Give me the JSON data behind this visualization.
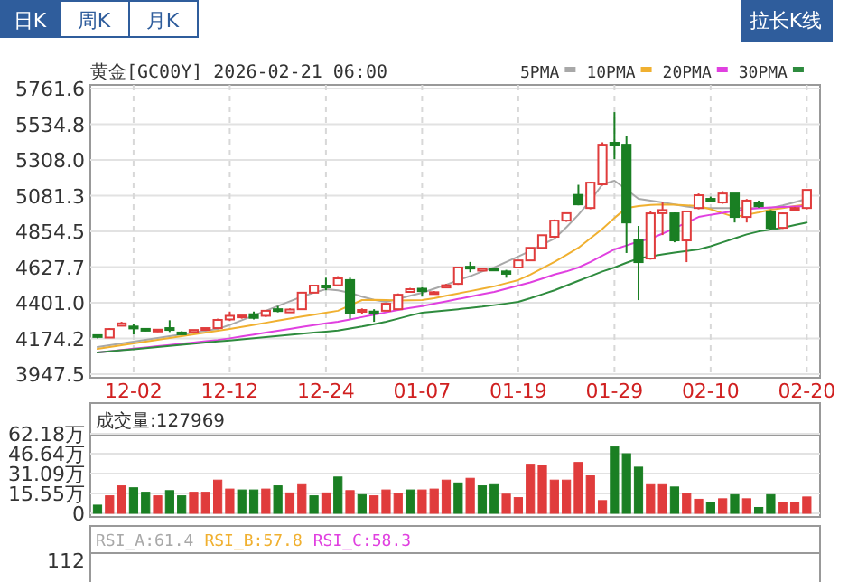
{
  "chart_data": [
    {
      "type": "candlestick",
      "title": "黄金[GC00Y] 2026-02-21 06:00",
      "annotations": [
        "日K",
        "周K",
        "月K",
        "拉长K线"
      ],
      "categories": [
        null,
        null,
        null,
        "12-02",
        null,
        null,
        null,
        null,
        null,
        null,
        null,
        "12-12",
        null,
        null,
        null,
        null,
        null,
        null,
        null,
        "12-24",
        null,
        null,
        null,
        null,
        null,
        null,
        null,
        "01-07",
        null,
        null,
        null,
        null,
        null,
        null,
        null,
        "01-19",
        null,
        null,
        null,
        null,
        null,
        null,
        null,
        "01-29",
        null,
        null,
        null,
        null,
        null,
        null,
        null,
        "02-10",
        null,
        null,
        null,
        null,
        null,
        null,
        null,
        "02-20"
      ],
      "ohlc": [
        [
          4195,
          4200,
          4175,
          4185
        ],
        [
          4180,
          4240,
          4175,
          4234
        ],
        [
          4255,
          4280,
          4250,
          4270
        ],
        [
          4250,
          4265,
          4200,
          4238
        ],
        [
          4235,
          4240,
          4220,
          4228
        ],
        [
          4222,
          4235,
          4215,
          4230
        ],
        [
          4240,
          4290,
          4215,
          4232
        ],
        [
          4212,
          4220,
          4200,
          4205
        ],
        [
          4215,
          4232,
          4210,
          4228
        ],
        [
          4232,
          4245,
          4225,
          4240
        ],
        [
          4240,
          4300,
          4235,
          4292
        ],
        [
          4295,
          4345,
          4285,
          4318
        ],
        [
          4310,
          4325,
          4300,
          4320
        ],
        [
          4328,
          4345,
          4295,
          4305
        ],
        [
          4318,
          4355,
          4310,
          4350
        ],
        [
          4360,
          4380,
          4340,
          4350
        ],
        [
          4340,
          4365,
          4335,
          4358
        ],
        [
          4360,
          4470,
          4355,
          4465
        ],
        [
          4465,
          4515,
          4460,
          4510
        ],
        [
          4510,
          4560,
          4480,
          4500
        ],
        [
          4512,
          4570,
          4505,
          4556
        ],
        [
          4545,
          4560,
          4300,
          4337
        ],
        [
          4345,
          4365,
          4330,
          4355
        ],
        [
          4345,
          4360,
          4280,
          4338
        ],
        [
          4350,
          4400,
          4345,
          4395
        ],
        [
          4360,
          4460,
          4355,
          4452
        ],
        [
          4470,
          4495,
          4465,
          4487
        ],
        [
          4490,
          4500,
          4440,
          4475
        ],
        [
          4462,
          4475,
          4455,
          4468
        ],
        [
          4498,
          4520,
          4495,
          4512
        ],
        [
          4521,
          4630,
          4515,
          4625
        ],
        [
          4630,
          4660,
          4595,
          4622
        ],
        [
          4605,
          4625,
          4600,
          4618
        ],
        [
          4618,
          4625,
          4605,
          4612
        ],
        [
          4600,
          4610,
          4560,
          4585
        ],
        [
          4625,
          4675,
          4620,
          4670
        ],
        [
          4670,
          4755,
          4665,
          4750
        ],
        [
          4750,
          4835,
          4745,
          4830
        ],
        [
          4820,
          4930,
          4815,
          4923
        ],
        [
          4923,
          4975,
          4915,
          4970
        ],
        [
          5086,
          5150,
          5020,
          5026
        ],
        [
          5003,
          5170,
          4995,
          5164
        ],
        [
          5153,
          5420,
          5145,
          5405
        ],
        [
          5417,
          5612,
          5313,
          5400
        ],
        [
          5405,
          5463,
          4717,
          4911
        ],
        [
          4797,
          4889,
          4418,
          4659
        ],
        [
          4682,
          4981,
          4675,
          4969
        ],
        [
          4970,
          5038,
          4831,
          4990
        ],
        [
          4969,
          4975,
          4785,
          4797
        ],
        [
          4797,
          4985,
          4659,
          4981
        ],
        [
          5003,
          5095,
          4995,
          5084
        ],
        [
          5061,
          5075,
          5040,
          5050
        ],
        [
          5038,
          5110,
          5030,
          5095
        ],
        [
          5095,
          5100,
          4911,
          4946
        ],
        [
          4946,
          5060,
          4911,
          5050
        ],
        [
          5038,
          5050,
          5005,
          5015
        ],
        [
          4981,
          4990,
          4865,
          4877
        ],
        [
          4877,
          4975,
          4870,
          4969
        ],
        [
          4992,
          5010,
          4985,
          5003
        ],
        [
          5003,
          5118,
          4995,
          5118
        ]
      ],
      "colors": [
        "#1a7f23",
        "#e03c3c",
        "#e03c3c",
        "#1a7f23",
        "#1a7f23",
        "#e03c3c",
        "#1a7f23",
        "#1a7f23",
        "#e03c3c",
        "#e03c3c",
        "#e03c3c",
        "#e03c3c",
        "#e03c3c",
        "#1a7f23",
        "#e03c3c",
        "#1a7f23",
        "#e03c3c",
        "#e03c3c",
        "#e03c3c",
        "#1a7f23",
        "#e03c3c",
        "#1a7f23",
        "#e03c3c",
        "#1a7f23",
        "#e03c3c",
        "#e03c3c",
        "#e03c3c",
        "#1a7f23",
        "#e03c3c",
        "#e03c3c",
        "#e03c3c",
        "#1a7f23",
        "#e03c3c",
        "#1a7f23",
        "#1a7f23",
        "#e03c3c",
        "#e03c3c",
        "#e03c3c",
        "#e03c3c",
        "#e03c3c",
        "#1a7f23",
        "#e03c3c",
        "#e03c3c",
        "#1a7f23",
        "#1a7f23",
        "#1a7f23",
        "#e03c3c",
        "#e03c3c",
        "#1a7f23",
        "#e03c3c",
        "#e03c3c",
        "#1a7f23",
        "#e03c3c",
        "#1a7f23",
        "#e03c3c",
        "#1a7f23",
        "#1a7f23",
        "#e03c3c",
        "#e03c3c",
        "#e03c3c"
      ],
      "series": [
        {
          "name": "5PMA",
          "type": "line",
          "color": "#a8a8a8",
          "values": [
            4120,
            4131,
            4143,
            4154,
            4166,
            4177,
            4188,
            4200,
            4211,
            4223,
            4234,
            4260,
            4290,
            4320,
            4350,
            4380,
            4410,
            4440,
            4465,
            4487,
            4480,
            4464,
            4440,
            4420,
            4407,
            4425,
            4445,
            4464,
            4490,
            4515,
            4545,
            4570,
            4600,
            4625,
            4660,
            4695,
            4730,
            4770,
            4808,
            4880,
            4960,
            5050,
            5153,
            5176,
            5120,
            5061,
            5050,
            5038,
            5025,
            5012,
            5003,
            5003,
            5003,
            5003,
            5003,
            5003,
            5003,
            5020,
            5040,
            5061
          ]
        },
        {
          "name": "10PMA",
          "type": "line",
          "color": "#f0b030",
          "values": [
            4108,
            4120,
            4131,
            4143,
            4154,
            4166,
            4177,
            4189,
            4200,
            4212,
            4223,
            4235,
            4248,
            4261,
            4274,
            4287,
            4300,
            4313,
            4325,
            4338,
            4350,
            4385,
            4418,
            4420,
            4418,
            4416,
            4417,
            4418,
            4430,
            4445,
            4460,
            4475,
            4490,
            4505,
            4525,
            4545,
            4580,
            4620,
            4660,
            4705,
            4750,
            4810,
            4870,
            4940,
            5003,
            5015,
            5022,
            5026,
            5024,
            5020,
            5015,
            4995,
            4970,
            4946,
            4960,
            4975,
            4992,
            5003,
            5015,
            5026
          ]
        },
        {
          "name": "20PMA",
          "type": "line",
          "color": "#e040e0",
          "values": [
            4085,
            4093,
            4101,
            4109,
            4117,
            4125,
            4133,
            4141,
            4149,
            4157,
            4165,
            4175,
            4187,
            4199,
            4211,
            4223,
            4235,
            4247,
            4259,
            4270,
            4280,
            4295,
            4310,
            4325,
            4340,
            4355,
            4368,
            4380,
            4395,
            4410,
            4425,
            4440,
            4455,
            4470,
            4490,
            4510,
            4530,
            4555,
            4580,
            4600,
            4625,
            4660,
            4700,
            4740,
            4765,
            4790,
            4808,
            4840,
            4875,
            4910,
            4946,
            4960,
            4972,
            4984,
            4995,
            5003,
            5006,
            5009,
            5012,
            5015
          ]
        },
        {
          "name": "30PMA",
          "type": "line",
          "color": "#2e8b3e",
          "values": [
            4085,
            4092,
            4099,
            4106,
            4113,
            4120,
            4127,
            4134,
            4141,
            4148,
            4155,
            4162,
            4169,
            4176,
            4183,
            4190,
            4197,
            4204,
            4211,
            4218,
            4225,
            4238,
            4250,
            4265,
            4280,
            4300,
            4320,
            4338,
            4345,
            4352,
            4360,
            4368,
            4376,
            4386,
            4396,
            4407,
            4430,
            4455,
            4480,
            4510,
            4540,
            4570,
            4600,
            4625,
            4655,
            4682,
            4695,
            4708,
            4720,
            4730,
            4740,
            4760,
            4785,
            4810,
            4835,
            4854,
            4866,
            4878,
            4895,
            4911
          ]
        }
      ],
      "ylim": [
        3947.5,
        5761.6
      ],
      "yticks": [
        3947.5,
        4174.2,
        {
          "value": 4401,
          "label": "4401.0"
        },
        4627.7,
        4854.5,
        5081.3,
        {
          "value": 5308,
          "label": "5308.0"
        },
        5534.8,
        5761.6
      ],
      "grid": true,
      "legend": "top right"
    },
    {
      "type": "bar",
      "title": "成交量:127969",
      "categories": [
        null,
        null,
        null,
        null,
        null,
        null,
        null,
        null,
        null,
        null,
        null,
        null,
        null,
        null,
        null,
        null,
        null,
        null,
        null,
        null,
        null,
        null,
        null,
        null,
        null,
        null,
        null,
        null,
        null,
        null,
        null,
        null,
        null,
        null,
        null,
        null,
        null,
        null,
        null,
        null,
        null,
        null,
        null,
        null,
        null,
        null,
        null,
        null,
        null,
        null,
        null,
        null,
        null,
        null,
        null,
        null,
        null,
        null,
        null,
        null
      ],
      "values": [
        6.4,
        13.7,
        21.5,
        20,
        16.5,
        13.7,
        17.8,
        13.7,
        16.5,
        16.5,
        26,
        19,
        18.3,
        18.3,
        19,
        21.5,
        16,
        22.4,
        13.7,
        16,
        28.4,
        17.8,
        14.6,
        13.7,
        18.3,
        15.5,
        18.3,
        18.3,
        19,
        26,
        23.8,
        27.4,
        21.5,
        22.4,
        15,
        12.3,
        38.4,
        37.5,
        26,
        26,
        39.8,
        29.3,
        10,
        52.1,
        46.6,
        36.1,
        22.4,
        22.4,
        20.6,
        15.5,
        11,
        8.7,
        11.4,
        14.6,
        11.4,
        4.6,
        14.6,
        8.7,
        8.7,
        12.8
      ],
      "colors": [
        "#1a7f23",
        "#e03c3c",
        "#e03c3c",
        "#1a7f23",
        "#1a7f23",
        "#e03c3c",
        "#1a7f23",
        "#1a7f23",
        "#e03c3c",
        "#e03c3c",
        "#e03c3c",
        "#e03c3c",
        "#1a7f23",
        "#1a7f23",
        "#e03c3c",
        "#1a7f23",
        "#e03c3c",
        "#e03c3c",
        "#1a7f23",
        "#e03c3c",
        "#1a7f23",
        "#e03c3c",
        "#1a7f23",
        "#e03c3c",
        "#e03c3c",
        "#e03c3c",
        "#1a7f23",
        "#e03c3c",
        "#e03c3c",
        "#e03c3c",
        "#1a7f23",
        "#e03c3c",
        "#1a7f23",
        "#1a7f23",
        "#e03c3c",
        "#e03c3c",
        "#e03c3c",
        "#e03c3c",
        "#e03c3c",
        "#e03c3c",
        "#e03c3c",
        "#e03c3c",
        "#e03c3c",
        "#1a7f23",
        "#1a7f23",
        "#1a7f23",
        "#e03c3c",
        "#e03c3c",
        "#1a7f23",
        "#e03c3c",
        "#e03c3c",
        "#1a7f23",
        "#e03c3c",
        "#1a7f23",
        "#e03c3c",
        "#1a7f23",
        "#1a7f23",
        "#e03c3c",
        "#e03c3c",
        "#e03c3c"
      ],
      "ylim": [
        0,
        62.18
      ],
      "yticks": [
        0,
        {
          "value": 15.55,
          "label": "15.55万"
        },
        {
          "value": 31.09,
          "label": "31.09万"
        },
        {
          "value": 46.64,
          "label": "46.64万"
        },
        {
          "value": 62.18,
          "label": "62.18万"
        }
      ],
      "grid": "y",
      "tick_labels": "y"
    },
    {
      "type": "other",
      "annotations": [
        "RSI_A:61.4",
        "RSI_B:57.8",
        "RSI_C:58.3",
        "112"
      ]
    }
  ]
}
